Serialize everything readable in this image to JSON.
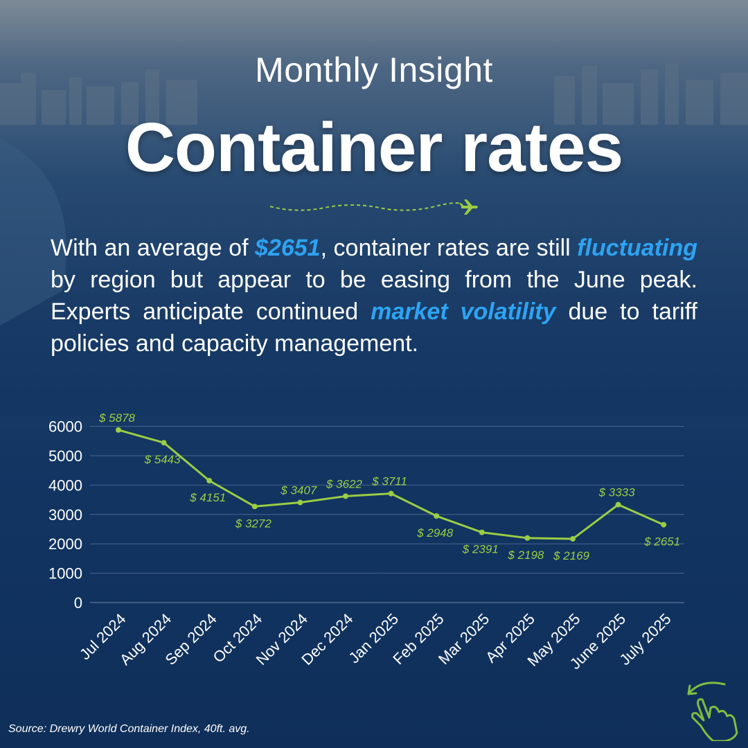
{
  "header": {
    "overtitle": "Monthly Insight",
    "title": "Container rates"
  },
  "paragraph": {
    "p1": "With an average of ",
    "h1": "$2651",
    "p2": ", container rates are still ",
    "h2": "fluctuating",
    "p3": " by region but appear to be easing from the June peak. Experts anticipate continued ",
    "h3": "market volatility",
    "p4": " due to tariff policies and capacity management."
  },
  "footer": {
    "source": "Source: Drewry World Container Index, 40ft. avg."
  },
  "icons": {
    "divider": "dashed-flight-path-airplane-icon",
    "swipe": "swipe-hand-icon"
  },
  "colors": {
    "accent": "#2ea3f2",
    "line": "#9acd45",
    "background": "#123562"
  },
  "chart_data": {
    "type": "line",
    "categories": [
      "Jul 2024",
      "Aug 2024",
      "Sep 2024",
      "Oct 2024",
      "Nov 2024",
      "Dec 2024",
      "Jan 2025",
      "Feb 2025",
      "Mar 2025",
      "Apr 2025",
      "May 2025",
      "June 2025",
      "July 2025"
    ],
    "values": [
      5878,
      5443,
      4151,
      3272,
      3407,
      3622,
      3711,
      2948,
      2391,
      2198,
      2169,
      3333,
      2651
    ],
    "data_labels": [
      "$ 5878",
      "$ 5443",
      "$ 4151",
      "$ 3272",
      "$ 3407",
      "$ 3622",
      "$ 3711",
      "$ 2948",
      "$ 2391",
      "$ 2198",
      "$ 2169",
      "$ 3333",
      "$ 2651"
    ],
    "label_position": [
      "above",
      "below",
      "below",
      "below",
      "above",
      "above",
      "above",
      "below",
      "below",
      "below",
      "below",
      "above",
      "below"
    ],
    "yticks": [
      0,
      1000,
      2000,
      3000,
      4000,
      5000,
      6000
    ],
    "ylim": [
      0,
      6000
    ],
    "grid": true,
    "legend": "none",
    "xlabel": "",
    "ylabel": ""
  }
}
